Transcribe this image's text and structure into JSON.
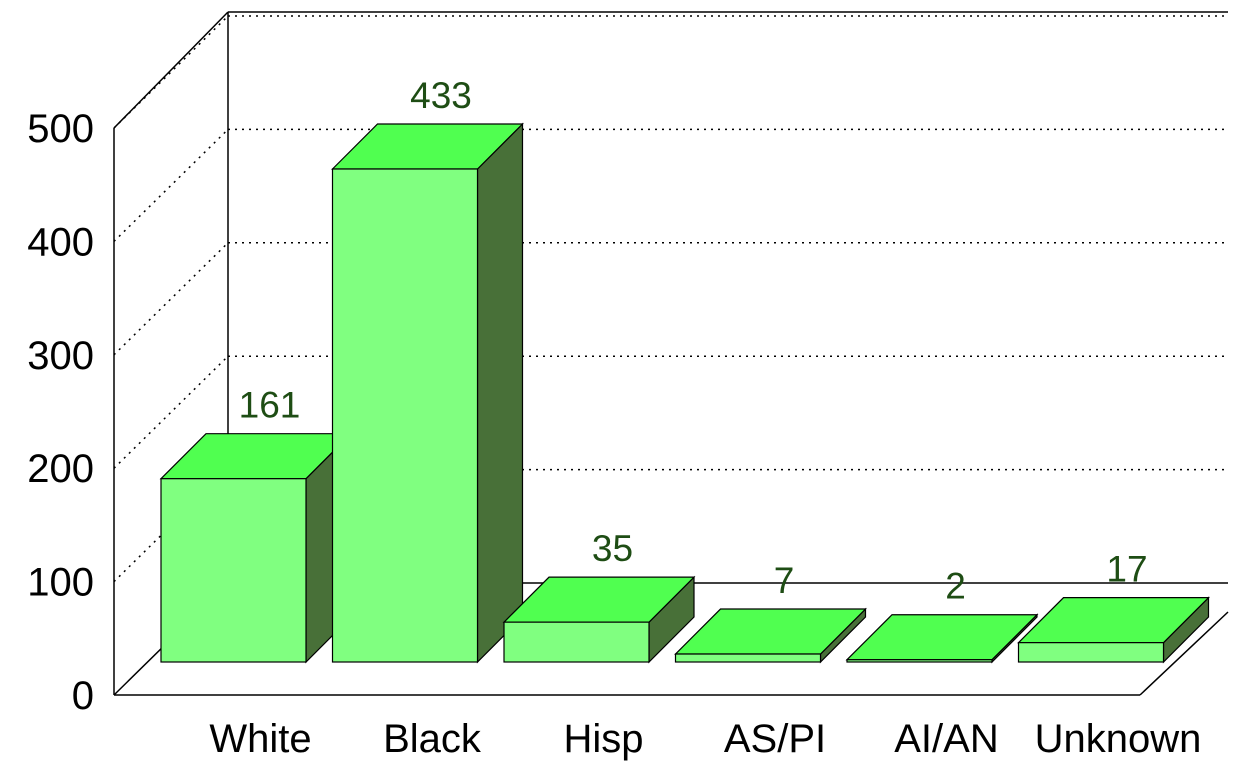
{
  "chart_data": {
    "type": "bar",
    "style": "3d",
    "categories": [
      "White",
      "Black",
      "Hisp",
      "AS/PI",
      "AI/AN",
      "Unknown"
    ],
    "values": [
      161,
      433,
      35,
      7,
      2,
      17
    ],
    "ylim": [
      0,
      500
    ],
    "yticks": [
      0,
      100,
      200,
      300,
      400,
      500
    ],
    "ytick_labels": [
      "0",
      "100",
      "200",
      "300",
      "400",
      "500"
    ],
    "grid": "horizontal-dotted",
    "legend": "none",
    "colors": {
      "bar_front": "#80ff80",
      "bar_top": "#50ff50",
      "bar_side": "#487038",
      "data_label": "#1e4d14",
      "grid": "#000000"
    }
  }
}
